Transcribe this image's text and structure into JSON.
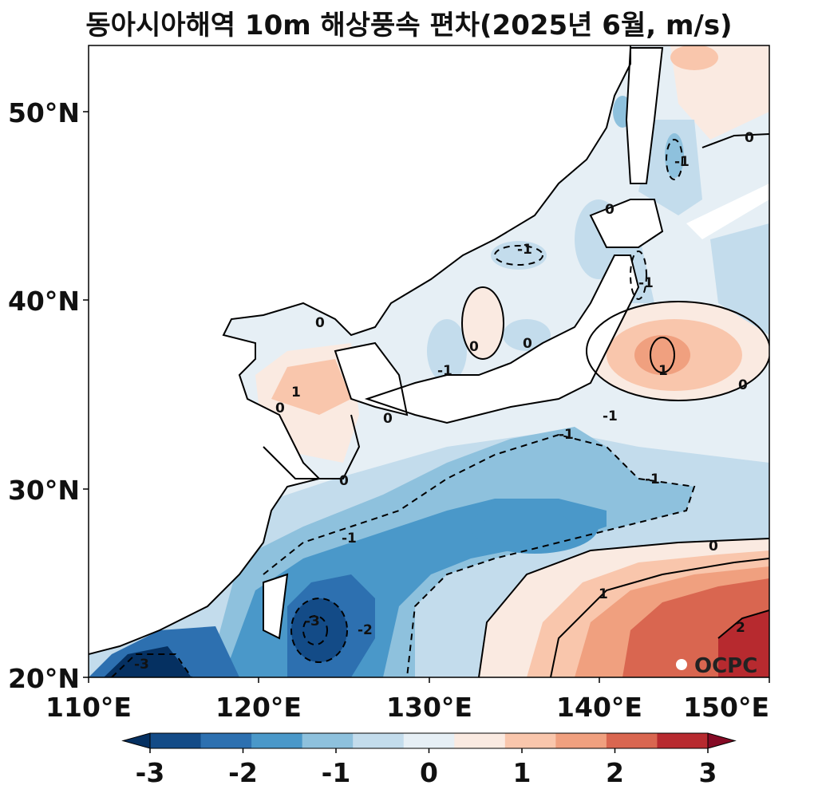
{
  "title": "동아시아해역 10m 해상풍속 편차(2025년 6월, m/s)",
  "lon_ticks": [
    "110°E",
    "120°E",
    "130°E",
    "140°E",
    "150°E"
  ],
  "lat_ticks": [
    "20°N",
    "30°N",
    "40°N",
    "50°N"
  ],
  "colorbar": {
    "tick_labels": [
      "-3",
      "-2",
      "-1",
      "0",
      "1",
      "2",
      "3"
    ],
    "levels": [
      -3,
      -2.5,
      -2,
      -1.5,
      -1,
      -0.5,
      0,
      0.5,
      1,
      1.5,
      2,
      2.5,
      3
    ],
    "colors": [
      "#053061",
      "#134b87",
      "#2d70b0",
      "#4a98c9",
      "#8ec1dd",
      "#c3dcec",
      "#e6eff5",
      "#faeae1",
      "#f9c6ac",
      "#f0a07f",
      "#d96650",
      "#b72a2f",
      "#850a25"
    ],
    "extend": "both"
  },
  "contour_labels": [
    "0",
    "0",
    "0",
    "0",
    "0",
    "0",
    "0",
    "0",
    "0",
    "-1",
    "-1",
    "-1",
    "-1",
    "-1",
    "-1",
    "-1",
    "-1",
    "1",
    "1",
    "1",
    "2",
    "-2",
    "-3",
    "-3"
  ],
  "watermark": "OCPC"
}
